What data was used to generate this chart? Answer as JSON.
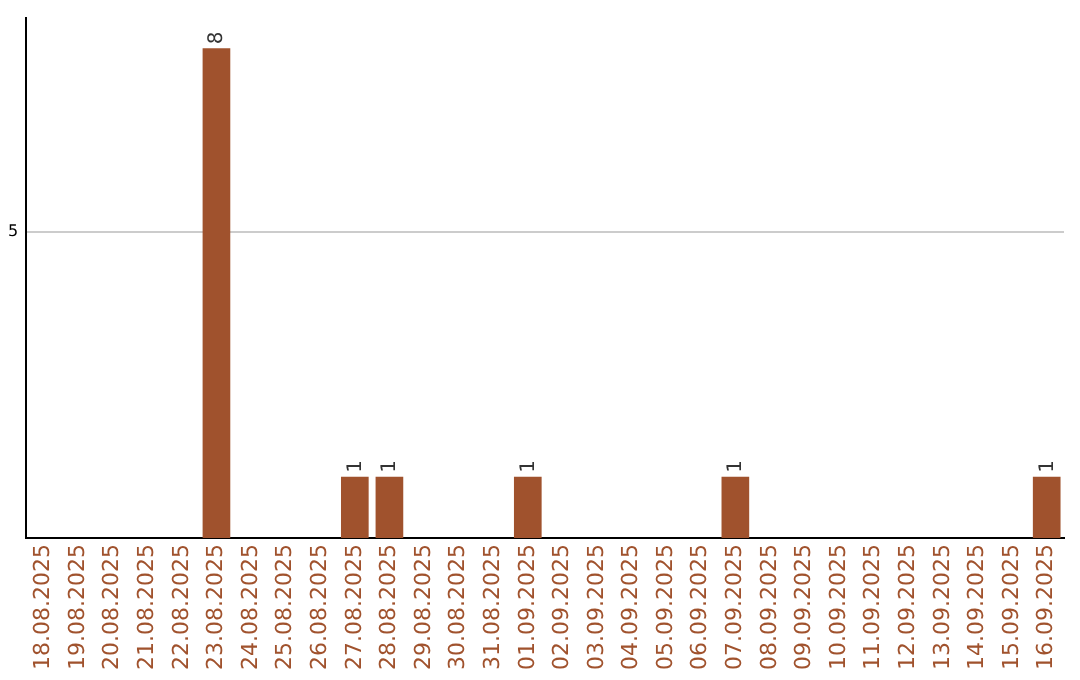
{
  "chart_data": {
    "type": "bar",
    "categories": [
      "18.08.2025",
      "19.08.2025",
      "20.08.2025",
      "21.08.2025",
      "22.08.2025",
      "23.08.2025",
      "24.08.2025",
      "25.08.2025",
      "26.08.2025",
      "27.08.2025",
      "28.08.2025",
      "29.08.2025",
      "30.08.2025",
      "31.08.2025",
      "01.09.2025",
      "02.09.2025",
      "03.09.2025",
      "04.09.2025",
      "05.09.2025",
      "06.09.2025",
      "07.09.2025",
      "08.09.2025",
      "09.09.2025",
      "10.09.2025",
      "11.09.2025",
      "12.09.2025",
      "13.09.2025",
      "14.09.2025",
      "15.09.2025",
      "16.09.2025"
    ],
    "values": [
      0,
      0,
      0,
      0,
      0,
      8,
      0,
      0,
      0,
      1,
      1,
      0,
      0,
      0,
      1,
      0,
      0,
      0,
      0,
      0,
      1,
      0,
      0,
      0,
      0,
      0,
      0,
      0,
      0,
      1
    ],
    "value_labels": [
      null,
      null,
      null,
      null,
      null,
      "8",
      null,
      null,
      null,
      "1",
      "1",
      null,
      null,
      null,
      "1",
      null,
      null,
      null,
      null,
      null,
      "1",
      null,
      null,
      null,
      null,
      null,
      null,
      null,
      null,
      "1"
    ],
    "color": "#a0522d",
    "ylim": [
      0,
      8.5
    ],
    "yticks": [
      5
    ],
    "grid": "y",
    "legend": false
  }
}
